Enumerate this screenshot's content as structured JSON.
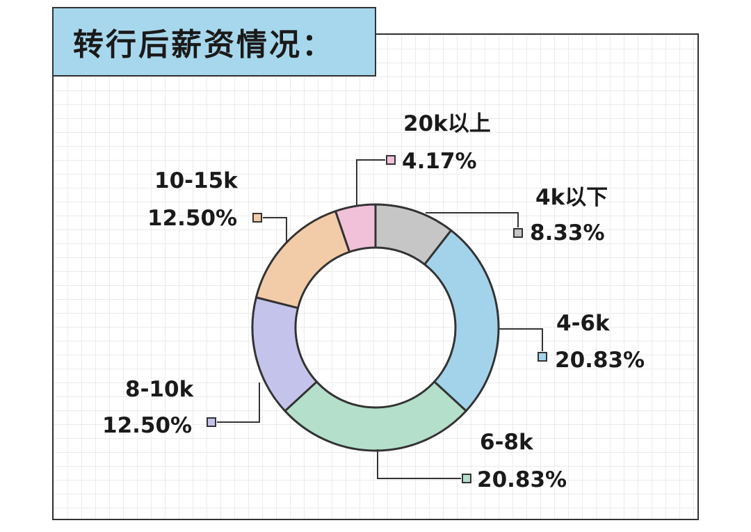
{
  "title": "转行后薪资情况：",
  "colors": {
    "outline": "#333333",
    "title_bg": "#a7d7ec"
  },
  "chart_data": {
    "type": "pie",
    "variant": "donut",
    "title": "转行后薪资情况：",
    "slices": [
      {
        "label": "4k以下",
        "value_label": "8.33%",
        "value": 8.33,
        "color": "#c6c6c6"
      },
      {
        "label": "4-6k",
        "value_label": "20.83%",
        "value": 20.83,
        "color": "#a3d3ea"
      },
      {
        "label": "6-8k",
        "value_label": "20.83%",
        "value": 20.83,
        "color": "#b4dfca"
      },
      {
        "label": "8-10k",
        "value_label": "12.50%",
        "value": 12.5,
        "color": "#c4c3ec"
      },
      {
        "label": "10-15k",
        "value_label": "12.50%",
        "value": 12.5,
        "color": "#f2cca8"
      },
      {
        "label": "20k以上",
        "value_label": "4.17%",
        "value": 4.17,
        "color": "#f1c1da"
      }
    ]
  }
}
